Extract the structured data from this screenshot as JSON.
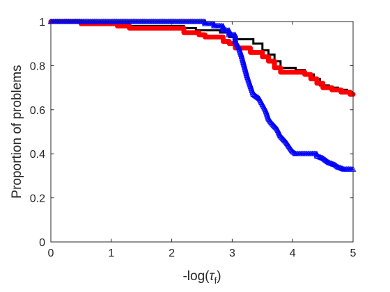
{
  "chart_data": {
    "type": "line",
    "title": "",
    "xlabel_prefix": "-log(",
    "xlabel_symbol": "τ",
    "xlabel_subscript": "f",
    "xlabel_suffix": ")",
    "ylabel": "Proportion of problems",
    "xlim": [
      0,
      5
    ],
    "ylim": [
      0,
      1
    ],
    "x_ticks": [
      "0",
      "1",
      "2",
      "3",
      "4",
      "5"
    ],
    "y_ticks": [
      "0",
      "0.2",
      "0.4",
      "0.6",
      "0.8",
      "1"
    ],
    "grid": false,
    "legend": "none",
    "series": [
      {
        "color": "#000000",
        "marker": "none",
        "points": [
          [
            0,
            1
          ],
          [
            0.7,
            1
          ],
          [
            0.7,
            0.99
          ],
          [
            1.3,
            0.99
          ],
          [
            1.3,
            0.98
          ],
          [
            2.2,
            0.98
          ],
          [
            2.2,
            0.97
          ],
          [
            2.4,
            0.97
          ],
          [
            2.4,
            0.96
          ],
          [
            2.8,
            0.96
          ],
          [
            2.8,
            0.95
          ],
          [
            2.95,
            0.95
          ],
          [
            2.95,
            0.93
          ],
          [
            3.05,
            0.93
          ],
          [
            3.05,
            0.92
          ],
          [
            3.35,
            0.92
          ],
          [
            3.35,
            0.9
          ],
          [
            3.5,
            0.9
          ],
          [
            3.5,
            0.87
          ],
          [
            3.6,
            0.87
          ],
          [
            3.6,
            0.85
          ],
          [
            3.7,
            0.85
          ],
          [
            3.7,
            0.82
          ],
          [
            3.8,
            0.82
          ],
          [
            3.8,
            0.79
          ],
          [
            4.05,
            0.79
          ],
          [
            4.05,
            0.78
          ],
          [
            4.2,
            0.78
          ],
          [
            4.2,
            0.76
          ],
          [
            4.35,
            0.76
          ],
          [
            4.35,
            0.74
          ],
          [
            4.45,
            0.74
          ],
          [
            4.45,
            0.71
          ],
          [
            4.6,
            0.71
          ],
          [
            4.6,
            0.7
          ],
          [
            4.75,
            0.7
          ],
          [
            4.75,
            0.69
          ],
          [
            4.9,
            0.69
          ],
          [
            4.9,
            0.68
          ],
          [
            5,
            0.68
          ]
        ]
      },
      {
        "color": "#ff0000",
        "marker": "circle",
        "points": [
          [
            0,
            1
          ],
          [
            0.5,
            1
          ],
          [
            0.5,
            0.99
          ],
          [
            1.1,
            0.99
          ],
          [
            1.1,
            0.98
          ],
          [
            1.3,
            0.98
          ],
          [
            1.3,
            0.97
          ],
          [
            2.2,
            0.97
          ],
          [
            2.2,
            0.95
          ],
          [
            2.45,
            0.95
          ],
          [
            2.45,
            0.94
          ],
          [
            2.55,
            0.94
          ],
          [
            2.55,
            0.93
          ],
          [
            2.85,
            0.93
          ],
          [
            2.85,
            0.91
          ],
          [
            2.95,
            0.91
          ],
          [
            2.95,
            0.9
          ],
          [
            3.05,
            0.9
          ],
          [
            3.05,
            0.88
          ],
          [
            3.3,
            0.88
          ],
          [
            3.3,
            0.86
          ],
          [
            3.5,
            0.86
          ],
          [
            3.5,
            0.84
          ],
          [
            3.6,
            0.84
          ],
          [
            3.6,
            0.82
          ],
          [
            3.7,
            0.82
          ],
          [
            3.7,
            0.79
          ],
          [
            3.8,
            0.79
          ],
          [
            3.8,
            0.77
          ],
          [
            4.2,
            0.77
          ],
          [
            4.2,
            0.76
          ],
          [
            4.3,
            0.76
          ],
          [
            4.3,
            0.74
          ],
          [
            4.4,
            0.74
          ],
          [
            4.4,
            0.72
          ],
          [
            4.5,
            0.72
          ],
          [
            4.5,
            0.7
          ],
          [
            4.65,
            0.7
          ],
          [
            4.65,
            0.69
          ],
          [
            4.8,
            0.69
          ],
          [
            4.8,
            0.68
          ],
          [
            4.95,
            0.68
          ],
          [
            4.95,
            0.67
          ],
          [
            5,
            0.67
          ]
        ]
      },
      {
        "color": "#0000ff",
        "marker": "triangle",
        "points": [
          [
            0,
            1
          ],
          [
            2.55,
            1
          ],
          [
            2.55,
            0.99
          ],
          [
            2.7,
            0.99
          ],
          [
            2.7,
            0.98
          ],
          [
            2.85,
            0.98
          ],
          [
            2.85,
            0.96
          ],
          [
            2.95,
            0.96
          ],
          [
            2.95,
            0.94
          ],
          [
            3.05,
            0.94
          ],
          [
            3.05,
            0.91
          ],
          [
            3.1,
            0.89
          ],
          [
            3.15,
            0.85
          ],
          [
            3.2,
            0.8
          ],
          [
            3.25,
            0.75
          ],
          [
            3.3,
            0.71
          ],
          [
            3.35,
            0.67
          ],
          [
            3.45,
            0.65
          ],
          [
            3.55,
            0.6
          ],
          [
            3.6,
            0.56
          ],
          [
            3.65,
            0.54
          ],
          [
            3.75,
            0.51
          ],
          [
            3.8,
            0.48
          ],
          [
            3.9,
            0.45
          ],
          [
            3.95,
            0.43
          ],
          [
            4,
            0.41
          ],
          [
            4.05,
            0.4
          ],
          [
            4.4,
            0.4
          ],
          [
            4.4,
            0.39
          ],
          [
            4.5,
            0.38
          ],
          [
            4.6,
            0.36
          ],
          [
            4.7,
            0.35
          ],
          [
            4.75,
            0.34
          ],
          [
            4.85,
            0.33
          ],
          [
            5,
            0.33
          ]
        ]
      }
    ]
  }
}
